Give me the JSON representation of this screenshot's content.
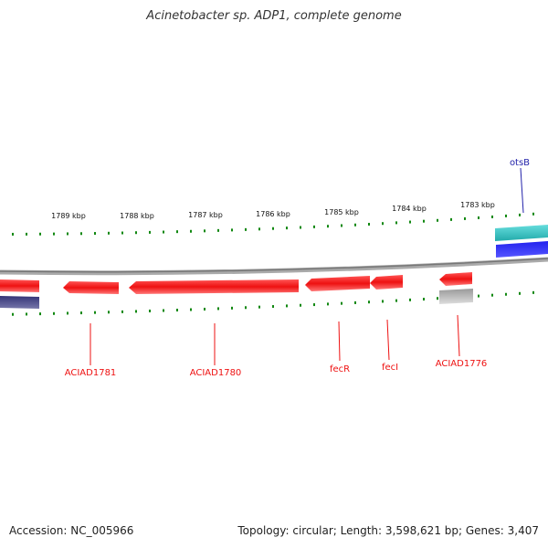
{
  "title": "Acinetobacter sp. ADP1, complete genome",
  "footer": {
    "accession": "Accession: NC_005966",
    "summary": "Topology: circular; Length: 3,598,621 bp; Genes: 3,407"
  },
  "colors": {
    "reverse_gene": "#ee1111",
    "forward_label": "#2222aa",
    "tick": "#118811",
    "backbone": "#888888",
    "cyan_track": "#22bbbb",
    "blue_track": "#1111dd",
    "navy_track": "#444488",
    "gray_track": "#bbbbbb"
  },
  "scale": {
    "unit": "kbp",
    "tick_labels": [
      "1789 kbp",
      "1788 kbp",
      "1787 kbp",
      "1786 kbp",
      "1785 kbp",
      "1784 kbp",
      "1783 kbp"
    ]
  },
  "genes": {
    "reverse_labels": [
      "ACIAD1781",
      "ACIAD1780",
      "fecR",
      "fecI",
      "ACIAD1776"
    ],
    "forward_labels": [
      "otsB"
    ]
  }
}
